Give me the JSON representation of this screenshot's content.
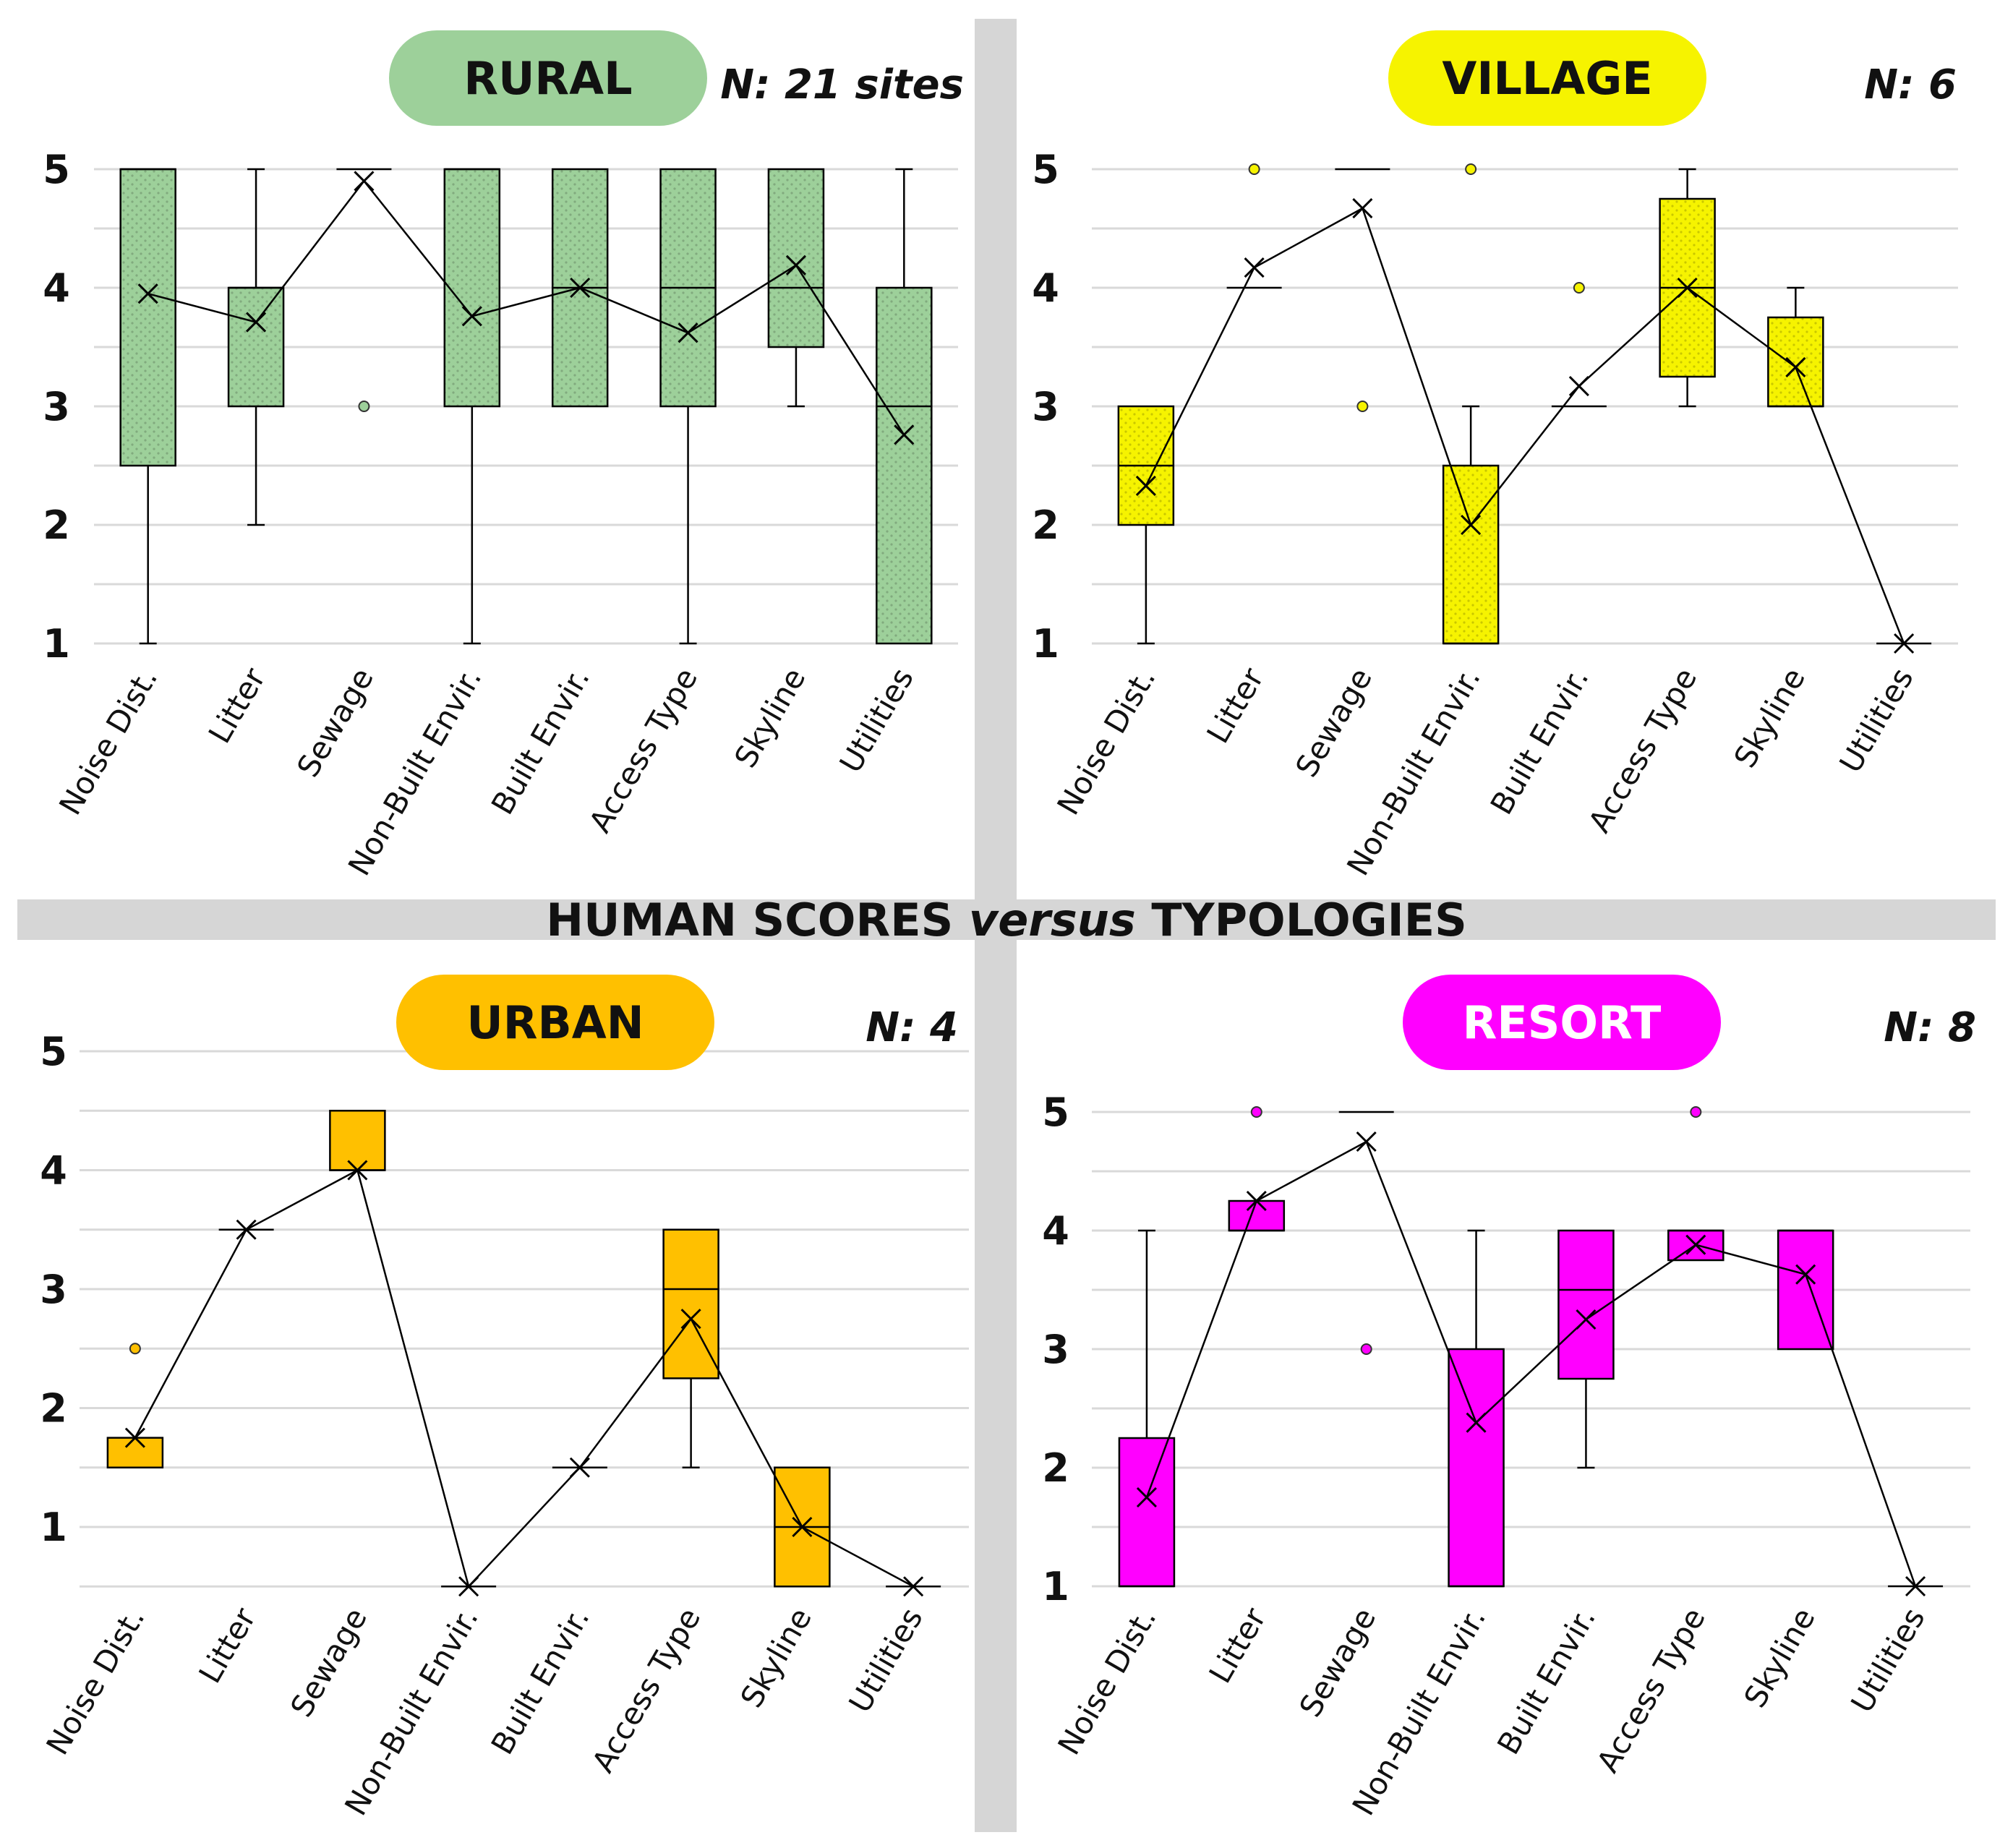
{
  "figure_title": {
    "pre": "HUMAN SCORES ",
    "emph": "versus",
    "post": " TYPOLOGIES"
  },
  "chart_data": [
    {
      "type": "box",
      "title": "RURAL",
      "n_label": "N: 21 sites",
      "color": "#9DD09A",
      "title_color": "#111111",
      "ylim": [
        1,
        5
      ],
      "yticks": [
        1,
        2,
        3,
        4,
        5
      ],
      "grid": true,
      "categories": [
        "Noise Dist.",
        "Litter",
        "Sewage",
        "Non-Built Envir.",
        "Built Envir.",
        "Access Type",
        "Skyline",
        "Utilities"
      ],
      "boxes": [
        {
          "q1": 2.5,
          "median": 5,
          "q3": 5,
          "min": 1,
          "max": 5,
          "mean": 3.95,
          "outliers": []
        },
        {
          "q1": 3,
          "median": 4,
          "q3": 4,
          "min": 2,
          "max": 5,
          "mean": 3.71,
          "outliers": []
        },
        {
          "q1": 5,
          "median": 5,
          "q3": 5,
          "min": 5,
          "max": 5,
          "mean": 4.9,
          "outliers": [
            3
          ]
        },
        {
          "q1": 3,
          "median": 5,
          "q3": 5,
          "min": 1,
          "max": 5,
          "mean": 3.76,
          "outliers": []
        },
        {
          "q1": 3,
          "median": 4,
          "q3": 5,
          "min": 3,
          "max": 5,
          "mean": 4.0,
          "outliers": []
        },
        {
          "q1": 3,
          "median": 4,
          "q3": 5,
          "min": 1,
          "max": 5,
          "mean": 3.62,
          "outliers": []
        },
        {
          "q1": 3.5,
          "median": 4,
          "q3": 5,
          "min": 3,
          "max": 5,
          "mean": 4.19,
          "outliers": []
        },
        {
          "q1": 1,
          "median": 3,
          "q3": 4,
          "min": 1,
          "max": 5,
          "mean": 2.76,
          "outliers": []
        }
      ]
    },
    {
      "type": "box",
      "title": "VILLAGE",
      "n_label": "N: 6",
      "color": "#F6F300",
      "title_color": "#111111",
      "ylim": [
        1,
        5
      ],
      "yticks": [
        1,
        2,
        3,
        4,
        5
      ],
      "grid": true,
      "categories": [
        "Noise Dist.",
        "Litter",
        "Sewage",
        "Non-Built Envir.",
        "Built Envir.",
        "Access Type",
        "Skyline",
        "Utilities"
      ],
      "boxes": [
        {
          "q1": 2,
          "median": 2.5,
          "q3": 3,
          "min": 1,
          "max": 3,
          "mean": 2.33,
          "outliers": []
        },
        {
          "q1": 4,
          "median": 4,
          "q3": 4,
          "min": 4,
          "max": 4,
          "mean": 4.17,
          "outliers": [
            5
          ]
        },
        {
          "q1": 5,
          "median": 5,
          "q3": 5,
          "min": 5,
          "max": 5,
          "mean": 4.67,
          "outliers": [
            3
          ]
        },
        {
          "q1": 1,
          "median": 1,
          "q3": 2.5,
          "min": 1,
          "max": 3,
          "mean": 2.0,
          "outliers": [
            5
          ]
        },
        {
          "q1": 3,
          "median": 3,
          "q3": 3,
          "min": 3,
          "max": 3,
          "mean": 3.17,
          "outliers": [
            4
          ]
        },
        {
          "q1": 3.25,
          "median": 4,
          "q3": 4.75,
          "min": 3,
          "max": 5,
          "mean": 4.0,
          "outliers": []
        },
        {
          "q1": 3,
          "median": 3,
          "q3": 3.75,
          "min": 3,
          "max": 4,
          "mean": 3.33,
          "outliers": []
        },
        {
          "q1": 1,
          "median": 1,
          "q3": 1,
          "min": 1,
          "max": 1,
          "mean": 1.0,
          "outliers": []
        }
      ]
    },
    {
      "type": "box",
      "title": "URBAN",
      "n_label": "N: 4",
      "color": "#FFC000",
      "title_color": "#111111",
      "ylim": [
        0.5,
        5
      ],
      "yticks": [
        1,
        2,
        3,
        4,
        5
      ],
      "grid": true,
      "categories": [
        "Noise Dist.",
        "Litter",
        "Sewage",
        "Non-Built Envir.",
        "Built Envir.",
        "Access Type",
        "Skyline",
        "Utilities"
      ],
      "boxes": [
        {
          "q1": 1.5,
          "median": 1.5,
          "q3": 1.75,
          "min": 1.5,
          "max": 1.75,
          "mean": 1.75,
          "outliers": [
            2.5
          ]
        },
        {
          "q1": 3.5,
          "median": 3.5,
          "q3": 3.5,
          "min": 3.5,
          "max": 3.5,
          "mean": 3.5,
          "outliers": []
        },
        {
          "q1": 4,
          "median": 4,
          "q3": 4.5,
          "min": 4,
          "max": 4.5,
          "mean": 4.0,
          "outliers": []
        },
        {
          "q1": 0.5,
          "median": 0.5,
          "q3": 0.5,
          "min": 0.5,
          "max": 0.5,
          "mean": 0.5,
          "outliers": []
        },
        {
          "q1": 1.5,
          "median": 1.5,
          "q3": 1.5,
          "min": 1.5,
          "max": 1.5,
          "mean": 1.5,
          "outliers": []
        },
        {
          "q1": 2.25,
          "median": 3,
          "q3": 3.5,
          "min": 1.5,
          "max": 3.5,
          "mean": 2.75,
          "outliers": []
        },
        {
          "q1": 0.5,
          "median": 1,
          "q3": 1.5,
          "min": 0.5,
          "max": 1.5,
          "mean": 1.0,
          "outliers": []
        },
        {
          "q1": 0.5,
          "median": 0.5,
          "q3": 0.5,
          "min": 0.5,
          "max": 0.5,
          "mean": 0.5,
          "outliers": []
        }
      ]
    },
    {
      "type": "box",
      "title": "RESORT",
      "n_label": "N: 8",
      "color": "#FF00FF",
      "title_color": "#FFFFFF",
      "ylim": [
        1,
        5
      ],
      "yticks": [
        1,
        2,
        3,
        4,
        5
      ],
      "grid": true,
      "categories": [
        "Noise Dist.",
        "Litter",
        "Sewage",
        "Non-Built Envir.",
        "Built Envir.",
        "Access Type",
        "Skyline",
        "Utilities"
      ],
      "boxes": [
        {
          "q1": 1,
          "median": 1,
          "q3": 2.25,
          "min": 1,
          "max": 4,
          "mean": 1.75,
          "outliers": []
        },
        {
          "q1": 4,
          "median": 4,
          "q3": 4.25,
          "min": 4,
          "max": 4.25,
          "mean": 4.25,
          "outliers": [
            5
          ]
        },
        {
          "q1": 5,
          "median": 5,
          "q3": 5,
          "min": 5,
          "max": 5,
          "mean": 4.75,
          "outliers": [
            3
          ]
        },
        {
          "q1": 1,
          "median": 1,
          "q3": 3,
          "min": 1,
          "max": 4,
          "mean": 2.38,
          "outliers": []
        },
        {
          "q1": 2.75,
          "median": 3.5,
          "q3": 4,
          "min": 2,
          "max": 4,
          "mean": 3.25,
          "outliers": []
        },
        {
          "q1": 3.75,
          "median": 4,
          "q3": 4,
          "min": 3.75,
          "max": 4,
          "mean": 3.88,
          "outliers": [
            5
          ]
        },
        {
          "q1": 3,
          "median": 4,
          "q3": 4,
          "min": 3,
          "max": 4,
          "mean": 3.63,
          "outliers": []
        },
        {
          "q1": 1,
          "median": 1,
          "q3": 1,
          "min": 1,
          "max": 1,
          "mean": 1.0,
          "outliers": []
        }
      ]
    }
  ]
}
